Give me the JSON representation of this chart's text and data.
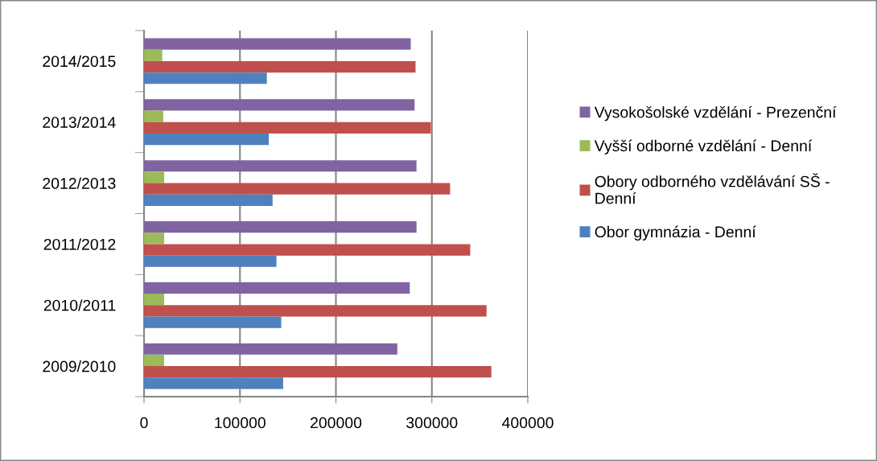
{
  "chart_data": {
    "type": "bar",
    "orientation": "horizontal",
    "categories": [
      "2014/2015",
      "2013/2014",
      "2012/2013",
      "2011/2012",
      "2010/2011",
      "2009/2010"
    ],
    "series": [
      {
        "name": "Vysokošolské vzdělání - Prezenční",
        "color": "#8064a2",
        "values": [
          278000,
          282000,
          284000,
          284000,
          277000,
          264000
        ]
      },
      {
        "name": "Vyšší odborné vzdělání - Denní",
        "color": "#9bbb59",
        "values": [
          19000,
          20000,
          21000,
          21000,
          21000,
          21000
        ]
      },
      {
        "name": "Obory odborného vzdělávání SŠ - Denní",
        "color": "#c0504d",
        "values": [
          283000,
          299000,
          319000,
          340000,
          357000,
          362000
        ]
      },
      {
        "name": "Obor gymnázia - Denní",
        "color": "#4f81bd",
        "values": [
          128000,
          130000,
          134000,
          138000,
          143000,
          145000
        ]
      }
    ],
    "xlim": [
      0,
      400000
    ],
    "xticks": [
      0,
      100000,
      200000,
      300000,
      400000
    ],
    "grid": "x",
    "legend": "right"
  }
}
